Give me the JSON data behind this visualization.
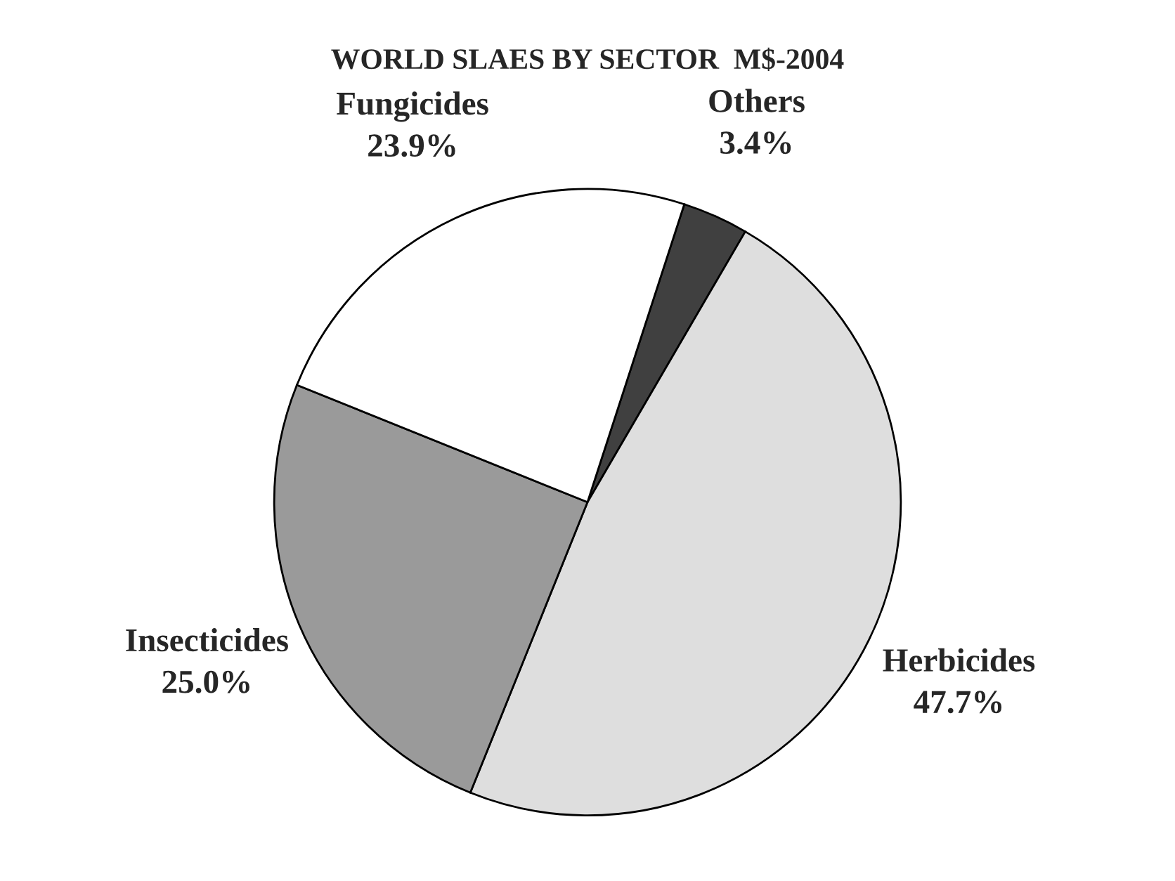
{
  "chart_data": {
    "type": "pie",
    "title": "WORLD SLAES BY SECTOR  M$-2004",
    "categories": [
      "Others",
      "Herbicides",
      "Insecticides",
      "Fungicides"
    ],
    "values": [
      3.4,
      47.7,
      25.0,
      23.9
    ],
    "value_labels": [
      "3.4%",
      "47.7%",
      "25.0%",
      "23.9%"
    ],
    "colors": [
      "#404040",
      "#dedede",
      "#9a9a9a",
      "#ffffff"
    ],
    "legend": false
  }
}
